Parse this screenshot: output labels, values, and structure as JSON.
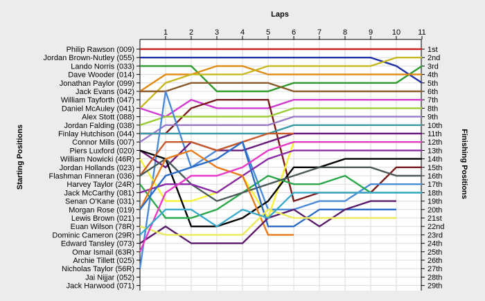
{
  "chart_data": {
    "type": "line",
    "title": "Laps",
    "ylabel_left": "Starting Positions",
    "ylabel_right": "Finishing Positions",
    "x": [
      0,
      1,
      2,
      3,
      4,
      5,
      6,
      7,
      8,
      9,
      10,
      11
    ],
    "x_tick_labels": [
      "1",
      "2",
      "3",
      "4",
      "5",
      "6",
      "7",
      "8",
      "9",
      "10",
      "11"
    ],
    "start_labels": [
      "Philip Rawson (009)",
      "Jordan Brown-Nutley (055)",
      "Lando Norris (033)",
      "Dave Wooder (014)",
      "Jonathan Paylor (099)",
      "Jack Evans (042)",
      "William Tayforth (047)",
      "Daniel McAuley (041)",
      "Alex Stott (088)",
      "Jordan Falding (038)",
      "Finlay Hutchison (044)",
      "Connor Mills (007)",
      "Piers Luxford (020)",
      "William Nowicki (46R)",
      "Jordan Hollands (023)",
      "Flashman Finneran (036)",
      "Harvey Taylor (24R)",
      "Jack McCarthy (081)",
      "Senan O'Kane (031)",
      "Morgan Rose (019)",
      "Lewis Brown (021)",
      "Euan Wilson (78R)",
      "Dominic Cameron (29R)",
      "Edward Tansley (073)",
      "Omar Ismail (63R)",
      "Archie Tillett (025)",
      "Nicholas Taylor (56R)",
      "Jai Nijjar (052)",
      "Jack Harwood (071)"
    ],
    "finish_labels": [
      "1st",
      "2nd",
      "3rd",
      "4th",
      "5th",
      "6th",
      "7th",
      "8th",
      "9th",
      "10th",
      "11th",
      "12th",
      "13th",
      "14th",
      "15th",
      "16th",
      "17th",
      "18th",
      "19th",
      "20th",
      "21st",
      "22nd",
      "23rd",
      "24th",
      "25th",
      "26th",
      "27th",
      "28th",
      "29th"
    ],
    "y_range": [
      1,
      29
    ],
    "grid": true,
    "series": [
      {
        "color": "#cc1f1f",
        "positions": [
          1,
          1,
          1,
          1,
          1,
          1,
          1,
          1,
          1,
          1,
          1,
          1
        ]
      },
      {
        "color": "#1f2fa8",
        "positions": [
          2,
          2,
          2,
          2,
          2,
          2,
          2,
          2,
          2,
          2,
          3,
          5
        ]
      },
      {
        "color": "#2e9a2e",
        "positions": [
          3,
          3,
          3,
          6,
          6,
          6,
          5,
          5,
          5,
          5,
          5,
          3
        ]
      },
      {
        "color": "#e08a10",
        "positions": [
          6,
          4,
          4,
          3,
          3,
          4,
          4,
          4,
          4,
          4,
          4,
          4
        ]
      },
      {
        "color": "#c8b820",
        "positions": [
          8,
          5,
          4,
          4,
          4,
          3,
          3,
          3,
          3,
          3,
          2,
          2
        ]
      },
      {
        "color": "#8a5a2a",
        "positions": [
          6,
          6,
          5,
          5,
          5,
          5,
          6,
          6,
          6,
          6,
          6,
          6
        ]
      },
      {
        "color": "#d03ad0",
        "positions": [
          8,
          9,
          7,
          8,
          8,
          8,
          7,
          7,
          7,
          7,
          7,
          7
        ]
      },
      {
        "color": "#7a1a1a",
        "positions": [
          11,
          11,
          8,
          7,
          7,
          7,
          19,
          18,
          18,
          18,
          15,
          15
        ]
      },
      {
        "color": "#9acd32",
        "positions": [
          10,
          9,
          9,
          9,
          9,
          9,
          8,
          8,
          8,
          8,
          8,
          8
        ]
      },
      {
        "color": "#9a7ac8",
        "positions": [
          12,
          10,
          10,
          10,
          10,
          10,
          9,
          9,
          9,
          9,
          9,
          9
        ]
      },
      {
        "color": "#3a9aa8",
        "positions": [
          11,
          11,
          11,
          11,
          11,
          11,
          10,
          10,
          10,
          10,
          10,
          10
        ]
      },
      {
        "color": "#4a8ad8",
        "positions": [
          27,
          6,
          15,
          13,
          12,
          20,
          20,
          19,
          19,
          17,
          17,
          17
        ]
      },
      {
        "color": "#f4f432",
        "positions": [
          14,
          19,
          19,
          18,
          16,
          21,
          12,
          12,
          12,
          12,
          12,
          12
        ]
      },
      {
        "color": "#6a1a7a",
        "positions": [
          13,
          15,
          12,
          13,
          13,
          12,
          11,
          11,
          11,
          11,
          11,
          11
        ]
      },
      {
        "color": "#000000",
        "positions": [
          13,
          14,
          22,
          22,
          21,
          19,
          15,
          15,
          14,
          14,
          14,
          14
        ]
      },
      {
        "color": "#c85a2a",
        "positions": [
          16,
          12,
          12,
          13,
          12,
          11,
          11
        ]
      },
      {
        "color": "#2aa84a",
        "positions": [
          17,
          21,
          21,
          20,
          18,
          16,
          17,
          17,
          16,
          18,
          18,
          18
        ]
      },
      {
        "color": "#4a5a5a",
        "positions": [
          16,
          14,
          17,
          19,
          18,
          17,
          16,
          15,
          15,
          15,
          16,
          16
        ]
      },
      {
        "color": "#8a2aa8",
        "positions": [
          18,
          17,
          17,
          18,
          16,
          14,
          13,
          13,
          13,
          13,
          13,
          13
        ]
      },
      {
        "color": "#e87a1a",
        "positions": [
          20,
          14,
          13,
          15,
          16,
          23,
          23
        ]
      },
      {
        "color": "#2a6ac8",
        "positions": [
          20,
          16,
          15,
          14,
          12,
          22,
          22,
          20,
          20,
          20,
          20
        ]
      },
      {
        "color": "#5a1a6a",
        "positions": [
          24,
          22,
          24,
          24,
          24,
          21,
          20,
          22,
          20,
          19,
          19
        ]
      },
      {
        "color": "#eaea5a",
        "positions": [
          22,
          23,
          23,
          23,
          23,
          20,
          21,
          21,
          21,
          21,
          21
        ]
      },
      {
        "color": "#e83ac8",
        "positions": [
          25,
          18,
          16,
          16,
          15,
          13,
          12,
          12,
          12,
          12,
          12,
          12
        ]
      },
      {
        "color": "#3aaacc",
        "positions": [
          23,
          20,
          20,
          22,
          20,
          21,
          18,
          18,
          18,
          18,
          18,
          18
        ]
      }
    ]
  }
}
